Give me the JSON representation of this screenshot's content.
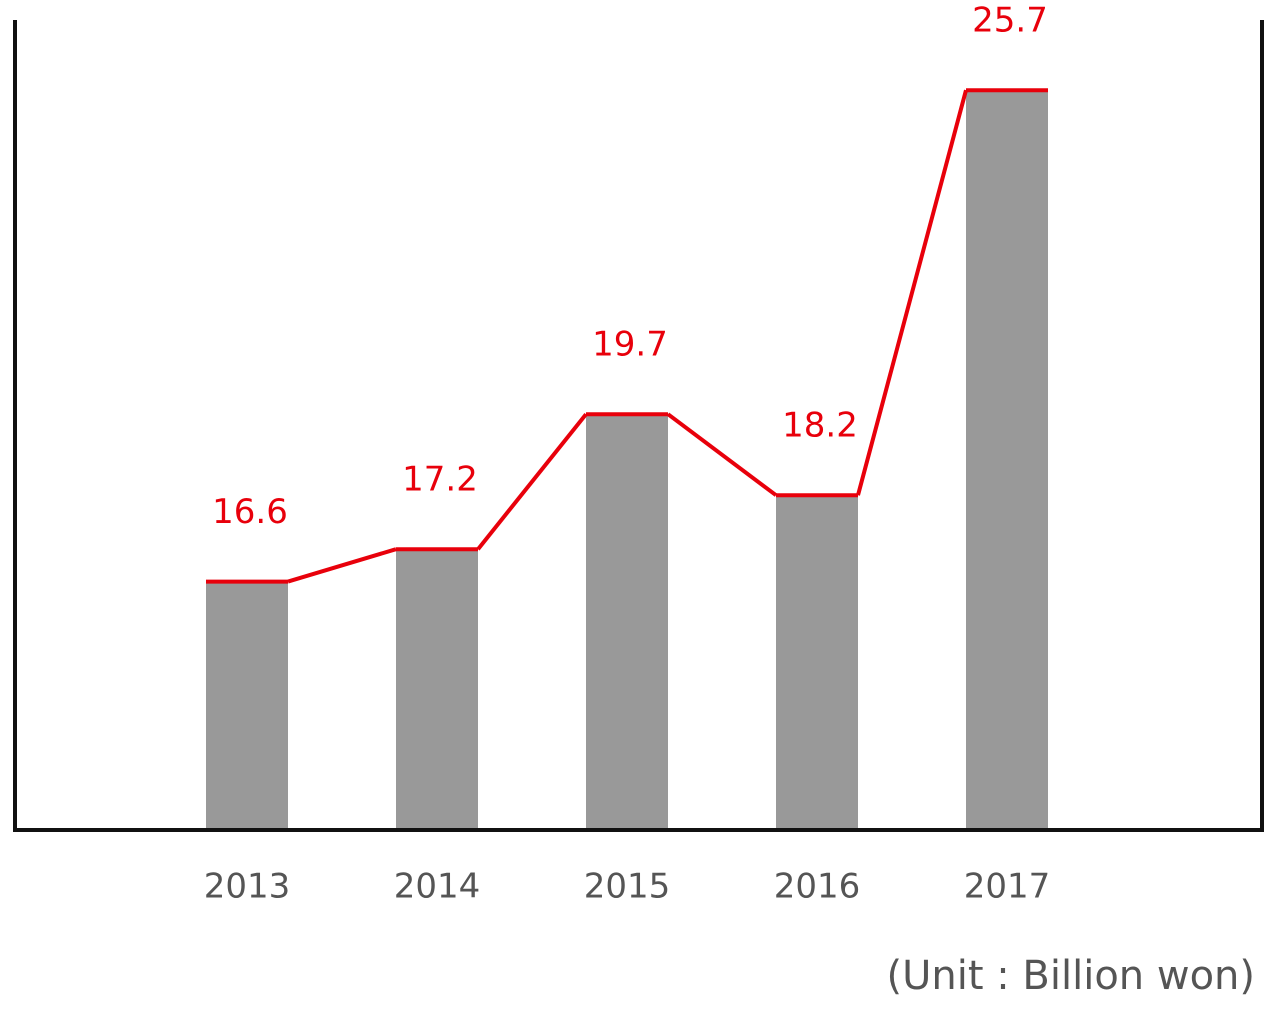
{
  "chart_data": {
    "type": "bar",
    "categories": [
      "2013",
      "2014",
      "2015",
      "2016",
      "2017"
    ],
    "values": [
      16.6,
      17.2,
      19.7,
      18.2,
      25.7
    ],
    "color": "#999999",
    "line_color": "#e8000b",
    "ylim": [
      12,
      27
    ],
    "note": "(Unit : Billion won)"
  }
}
